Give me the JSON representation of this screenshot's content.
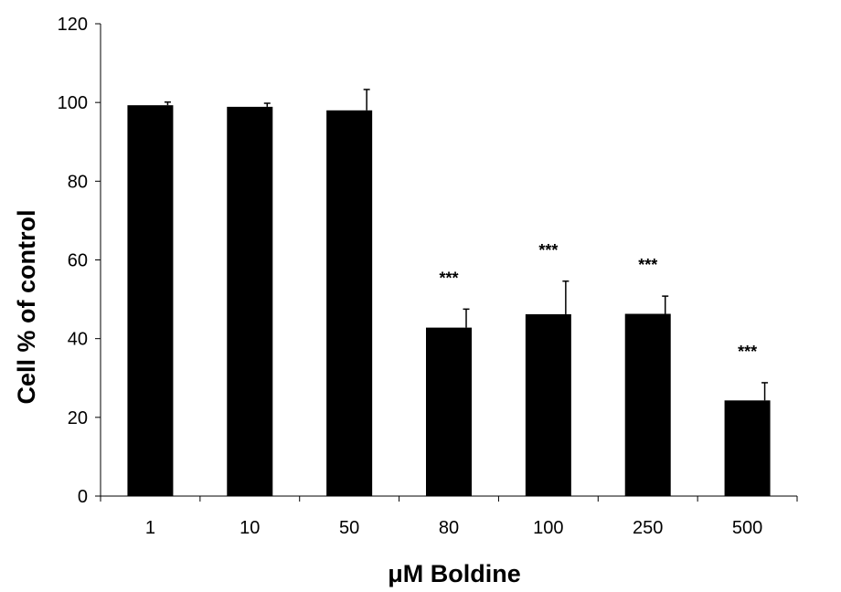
{
  "chart_data": {
    "type": "bar",
    "categories": [
      "1",
      "10",
      "50",
      "80",
      "100",
      "250",
      "500"
    ],
    "values": [
      99.3,
      98.9,
      98.0,
      42.8,
      46.2,
      46.3,
      24.3
    ],
    "errors": [
      0.8,
      0.9,
      5.3,
      4.7,
      8.4,
      4.5,
      4.5
    ],
    "annotations": [
      "",
      "",
      "",
      "***",
      "***",
      "***",
      "***"
    ],
    "xlabel": "μM Boldine",
    "ylabel": "Cell % of control",
    "ylim": [
      0,
      120
    ],
    "yticks": [
      "0",
      "20",
      "40",
      "60",
      "80",
      "100",
      "120"
    ],
    "bar_color": "#000000",
    "grid": false,
    "legend": false
  }
}
